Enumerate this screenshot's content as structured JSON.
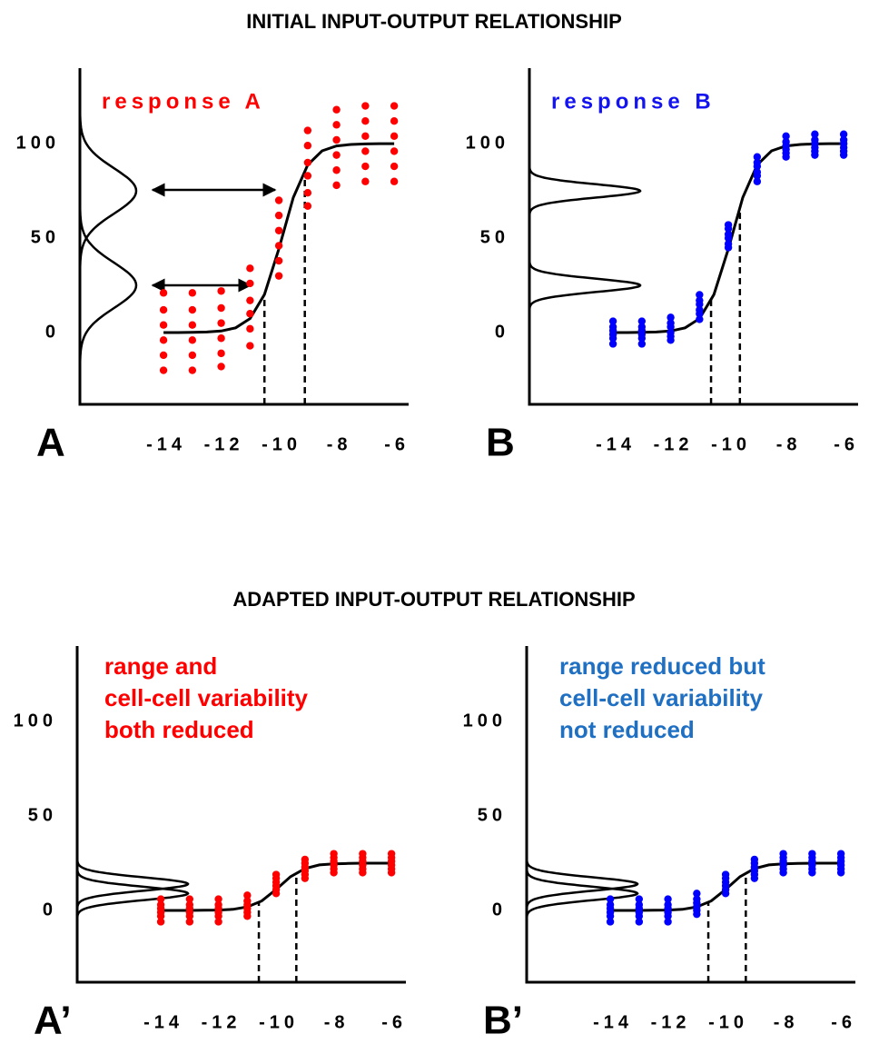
{
  "headings": [
    "INITIAL INPUT-OUTPUT RELATIONSHIP",
    "ADAPTED INPUT-OUTPUT RELATIONSHIP"
  ],
  "chart_data": [
    {
      "type": "scatter",
      "panel_label": "A",
      "annotation": [
        "response A"
      ],
      "annotation_color": "#ff0000",
      "color": "#ff0000",
      "x": [
        -14,
        -13,
        -12,
        -11,
        -10,
        -9,
        -8,
        -7,
        -6
      ],
      "values": [
        [
          21,
          12,
          4,
          -4,
          -12,
          -20
        ],
        [
          21,
          12,
          4,
          -4,
          -12,
          -20
        ],
        [
          22,
          13,
          5,
          -3,
          -11,
          -18
        ],
        [
          34,
          26,
          17,
          10,
          2,
          -7
        ],
        [
          70,
          62,
          54,
          46,
          38,
          30
        ],
        [
          107,
          99,
          90,
          83,
          74,
          67
        ],
        [
          118,
          110,
          102,
          94,
          86,
          78
        ],
        [
          120,
          112,
          104,
          96,
          88,
          80
        ],
        [
          120,
          112,
          104,
          96,
          88,
          80
        ]
      ],
      "curve": {
        "x": [
          -14,
          -13.5,
          -13,
          -12.5,
          -12,
          -11.5,
          -11,
          -10.5,
          -10,
          -9.5,
          -9,
          -8.5,
          -8,
          -7.5,
          -7,
          -6.5,
          -6
        ],
        "y": [
          0,
          0,
          0.1,
          0.3,
          0.8,
          2.5,
          7.4,
          20.1,
          44.3,
          71.5,
          88.8,
          96.2,
          98.8,
          99.6,
          99.9,
          100,
          100
        ]
      },
      "distributions": [
        {
          "mean": 25,
          "sd": 12
        },
        {
          "mean": 75,
          "sd": 12
        }
      ],
      "dashed_x": [
        -10.5,
        -9.1
      ],
      "xlim": [
        -16.9,
        -5.5
      ],
      "ylim": [
        -38,
        140
      ],
      "xticks": [
        -14,
        -12,
        -10,
        -8,
        -6
      ],
      "yticks": [
        0,
        50,
        100
      ]
    },
    {
      "type": "scatter",
      "panel_label": "B",
      "annotation": [
        "response B"
      ],
      "annotation_color": "#1414f0",
      "color": "#0000ff",
      "x": [
        -14,
        -13,
        -12,
        -11,
        -10,
        -9,
        -8,
        -7,
        -6
      ],
      "values": [
        [
          6,
          3,
          1,
          -1,
          -3,
          -6
        ],
        [
          6,
          3,
          1,
          -1,
          -3,
          -6
        ],
        [
          8,
          5,
          3,
          0,
          -2,
          -4
        ],
        [
          20,
          17,
          15,
          12,
          10,
          7
        ],
        [
          57,
          55,
          52,
          50,
          47,
          45
        ],
        [
          93,
          90,
          88,
          85,
          83,
          80
        ],
        [
          104,
          101,
          99,
          97,
          95,
          93
        ],
        [
          105,
          102,
          100,
          98,
          96,
          94
        ],
        [
          105,
          102,
          100,
          98,
          96,
          94
        ]
      ],
      "curve": {
        "x": [
          -14,
          -13.5,
          -13,
          -12.5,
          -12,
          -11.5,
          -11,
          -10.5,
          -10,
          -9.5,
          -9,
          -8.5,
          -8,
          -7.5,
          -7,
          -6.5,
          -6
        ],
        "y": [
          0,
          0,
          0.1,
          0.3,
          0.8,
          2.5,
          7.4,
          20.1,
          44.3,
          71.5,
          88.8,
          96.2,
          98.8,
          99.6,
          99.9,
          100,
          100
        ]
      },
      "distributions": [
        {
          "mean": 25,
          "sd": 3.5
        },
        {
          "mean": 75,
          "sd": 3.5
        }
      ],
      "dashed_x": [
        -10.6,
        -9.6
      ],
      "xlim": [
        -16.9,
        -5.5
      ],
      "ylim": [
        -38,
        140
      ],
      "xticks": [
        -14,
        -12,
        -10,
        -8,
        -6
      ],
      "yticks": [
        0,
        50,
        100
      ]
    },
    {
      "type": "scatter",
      "panel_label": "A’",
      "annotation": [
        "range and",
        "cell-cell variability",
        "both reduced"
      ],
      "annotation_color": "#ff0000",
      "color": "#ff0000",
      "x": [
        -14,
        -13,
        -12,
        -11,
        -10,
        -9,
        -8,
        -7,
        -6
      ],
      "values": [
        [
          6,
          3,
          1,
          -1,
          -3,
          -6
        ],
        [
          6,
          3,
          1,
          -1,
          -3,
          -6
        ],
        [
          6,
          3,
          1,
          -1,
          -3,
          -6
        ],
        [
          8,
          5,
          3,
          1,
          -1,
          -3
        ],
        [
          19,
          17,
          15,
          13,
          11,
          9
        ],
        [
          27,
          25,
          23,
          21,
          19,
          17
        ],
        [
          30,
          28,
          26,
          24,
          22,
          20
        ],
        [
          30,
          28,
          26,
          24,
          22,
          20
        ],
        [
          30,
          28,
          26,
          24,
          22,
          20
        ]
      ],
      "curve": {
        "x": [
          -14,
          -13.5,
          -13,
          -12.5,
          -12,
          -11.5,
          -11,
          -10.5,
          -10,
          -9.5,
          -9,
          -8.5,
          -8,
          -7.5,
          -7,
          -6.5,
          -6
        ],
        "y": [
          0,
          0,
          0,
          0.1,
          0.2,
          0.6,
          1.9,
          5,
          11.1,
          17.9,
          22.2,
          24.1,
          24.7,
          24.9,
          25,
          25,
          25
        ]
      },
      "distributions": [
        {
          "mean": 9,
          "sd": 3.5
        },
        {
          "mean": 14,
          "sd": 3.5
        }
      ],
      "dashed_x": [
        -10.6,
        -9.3
      ],
      "xlim": [
        -16.9,
        -5.5
      ],
      "ylim": [
        -38,
        140
      ],
      "xticks": [
        -14,
        -12,
        -10,
        -8,
        -6
      ],
      "yticks": [
        0,
        50,
        100
      ]
    },
    {
      "type": "scatter",
      "panel_label": "B’",
      "annotation": [
        "range reduced but",
        "cell-cell variability",
        "not reduced"
      ],
      "annotation_color": "#1f6fc2",
      "color": "#0000ff",
      "x": [
        -14,
        -13,
        -12,
        -11,
        -10,
        -9,
        -8,
        -7,
        -6
      ],
      "values": [
        [
          6,
          3,
          1,
          -1,
          -3,
          -6
        ],
        [
          6,
          3,
          1,
          -1,
          -3,
          -6
        ],
        [
          6,
          3,
          1,
          -1,
          -3,
          -6
        ],
        [
          9,
          6,
          4,
          2,
          0,
          -2
        ],
        [
          19,
          17,
          15,
          13,
          11,
          9
        ],
        [
          27,
          25,
          23,
          21,
          19,
          17
        ],
        [
          30,
          28,
          26,
          24,
          22,
          20
        ],
        [
          30,
          28,
          26,
          24,
          22,
          20
        ],
        [
          30,
          28,
          26,
          24,
          22,
          20
        ]
      ],
      "curve": {
        "x": [
          -14,
          -13.5,
          -13,
          -12.5,
          -12,
          -11.5,
          -11,
          -10.5,
          -10,
          -9.5,
          -9,
          -8.5,
          -8,
          -7.5,
          -7,
          -6.5,
          -6
        ],
        "y": [
          0,
          0,
          0,
          0.1,
          0.2,
          0.6,
          1.9,
          5,
          11.1,
          17.9,
          22.2,
          24.1,
          24.7,
          24.9,
          25,
          25,
          25
        ]
      },
      "distributions": [
        {
          "mean": 9,
          "sd": 3.5
        },
        {
          "mean": 14,
          "sd": 3.5
        }
      ],
      "dashed_x": [
        -10.6,
        -9.3
      ],
      "xlim": [
        -16.9,
        -5.5
      ],
      "ylim": [
        -38,
        140
      ],
      "xticks": [
        -14,
        -12,
        -10,
        -8,
        -6
      ],
      "yticks": [
        0,
        50,
        100
      ]
    }
  ]
}
